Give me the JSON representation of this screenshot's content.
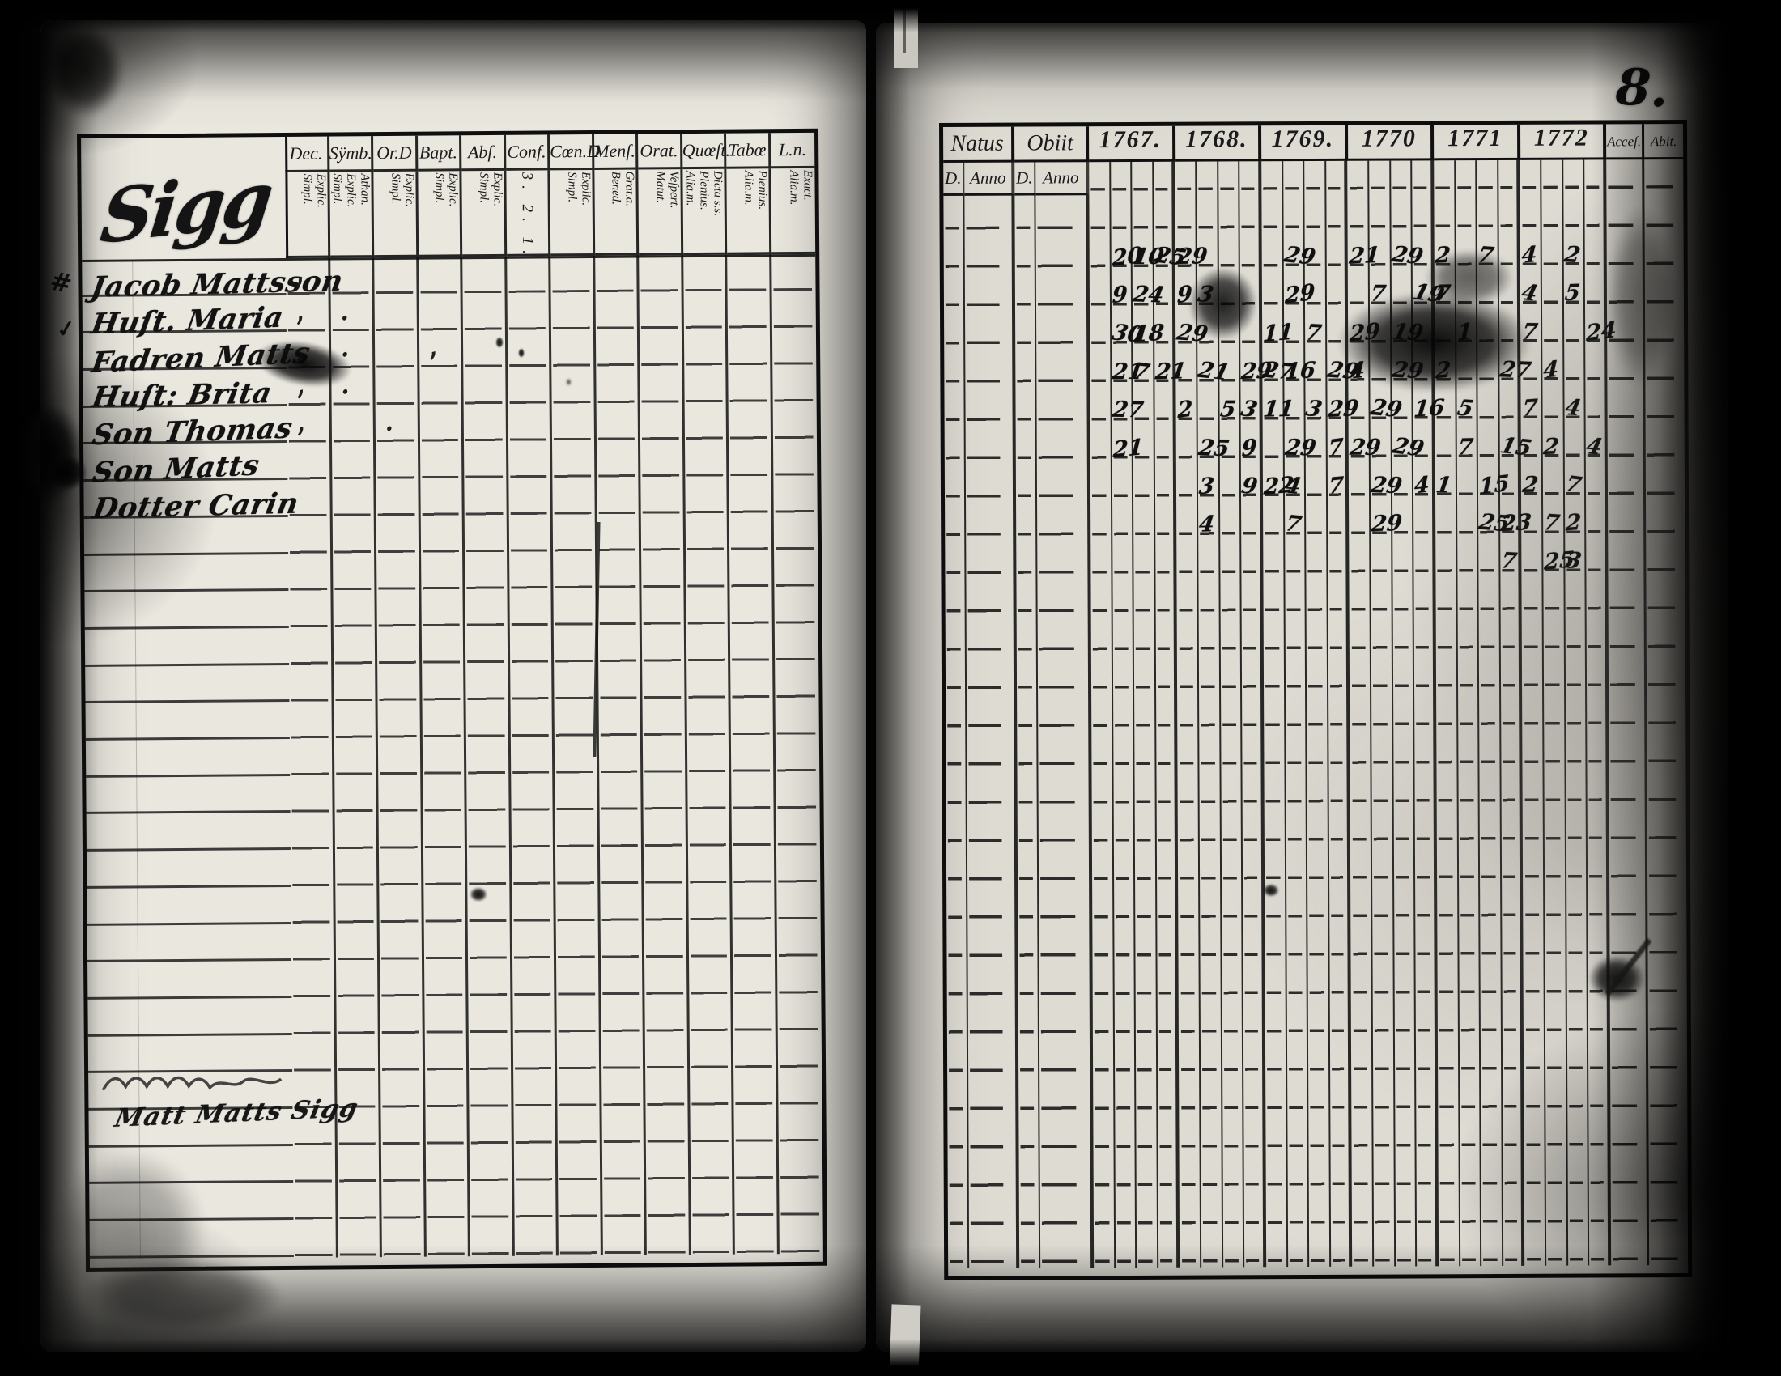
{
  "page": {
    "number": "8."
  },
  "left_table": {
    "heading_script": "Sigg",
    "names": [
      "Jacob Mattsson",
      "Huſt. Maria",
      "Fadren Matts",
      "Huſt: Brita",
      "Son Thomas",
      "Son Matts",
      "Dotter Carin"
    ],
    "margin_marks": [
      "#",
      "✓"
    ],
    "note": "Matt Matts Sigg",
    "row_count": 27,
    "columns": [
      {
        "label": "Dec.",
        "sub": [
          "Explic.",
          "Simpl."
        ]
      },
      {
        "label": "Sÿmb.",
        "sub": [
          "Athan.",
          "Explic.",
          "Simpl."
        ]
      },
      {
        "label": "Or.D",
        "sub": [
          "Explic.",
          "Simpl."
        ]
      },
      {
        "label": "Bapt.",
        "sub": [
          "Explic.",
          "Simpl."
        ]
      },
      {
        "label": "Abſ.",
        "sub": [
          "Explic.",
          "Simpl."
        ]
      },
      {
        "label": "Conf.",
        "sub": [
          "3.",
          "2.",
          "1."
        ],
        "horizontal": true
      },
      {
        "label": "Cœn.D",
        "sub": [
          "Explic.",
          "Simpl."
        ]
      },
      {
        "label": "Menſ.",
        "sub": [
          "Grat.a.",
          "Bened."
        ]
      },
      {
        "label": "Orat.",
        "sub": [
          "Veſpert.",
          "Matut."
        ]
      },
      {
        "label": "Quœſt.",
        "sub": [
          "Dicta s.s.",
          "Plenius.",
          "Alia.m."
        ]
      },
      {
        "label": "Tabœ",
        "sub": [
          "Plenius.",
          "Alia.m."
        ]
      },
      {
        "label": "L.n.",
        "sub": [
          "Exact.",
          "Alia.m."
        ]
      }
    ],
    "cell_marks": [
      {
        "r": 0,
        "c": 0,
        "t": ","
      },
      {
        "r": 1,
        "c": 0,
        "t": ","
      },
      {
        "r": 2,
        "c": 0,
        "t": ","
      },
      {
        "r": 3,
        "c": 0,
        "t": ","
      },
      {
        "r": 4,
        "c": 0,
        "t": ","
      },
      {
        "r": 1,
        "c": 1,
        "t": "."
      },
      {
        "r": 2,
        "c": 1,
        "t": "."
      },
      {
        "r": 3,
        "c": 1,
        "t": "."
      },
      {
        "r": 4,
        "c": 2,
        "t": "."
      },
      {
        "r": 2,
        "c": 3,
        "t": ","
      }
    ]
  },
  "right_table": {
    "natus": {
      "label": "Natus",
      "sub": [
        "D.",
        "Anno"
      ]
    },
    "obiit": {
      "label": "Obiit",
      "sub": [
        "D.",
        "Anno"
      ]
    },
    "years": [
      "1767.",
      "1768.",
      "1769.",
      "1770",
      "1771",
      "1772"
    ],
    "trailing": [
      "Acceſ.",
      "Abit."
    ],
    "row_count": 28,
    "marks": [
      {
        "r": 0,
        "y": 0,
        "s": 1,
        "t": "20"
      },
      {
        "r": 0,
        "y": 0,
        "s": 2,
        "t": "10"
      },
      {
        "r": 0,
        "y": 0,
        "s": 3,
        "t": "25"
      },
      {
        "r": 0,
        "y": 1,
        "s": 0,
        "t": "29"
      },
      {
        "r": 0,
        "y": 2,
        "s": 1,
        "t": "29"
      },
      {
        "r": 0,
        "y": 3,
        "s": 0,
        "t": "21"
      },
      {
        "r": 0,
        "y": 3,
        "s": 2,
        "t": "29"
      },
      {
        "r": 0,
        "y": 4,
        "s": 0,
        "t": "2"
      },
      {
        "r": 0,
        "y": 4,
        "s": 2,
        "t": "7"
      },
      {
        "r": 0,
        "y": 5,
        "s": 0,
        "t": "4"
      },
      {
        "r": 0,
        "y": 5,
        "s": 2,
        "t": "2"
      },
      {
        "r": 1,
        "y": 0,
        "s": 1,
        "t": "9"
      },
      {
        "r": 1,
        "y": 0,
        "s": 2,
        "t": "24"
      },
      {
        "r": 1,
        "y": 1,
        "s": 0,
        "t": "9"
      },
      {
        "r": 1,
        "y": 1,
        "s": 1,
        "t": "3"
      },
      {
        "r": 1,
        "y": 2,
        "s": 1,
        "t": "29"
      },
      {
        "r": 1,
        "y": 3,
        "s": 1,
        "t": "7"
      },
      {
        "r": 1,
        "y": 3,
        "s": 3,
        "t": "19"
      },
      {
        "r": 1,
        "y": 4,
        "s": 0,
        "t": "7"
      },
      {
        "r": 1,
        "y": 5,
        "s": 0,
        "t": "4"
      },
      {
        "r": 1,
        "y": 5,
        "s": 2,
        "t": "5"
      },
      {
        "r": 2,
        "y": 0,
        "s": 1,
        "t": "30"
      },
      {
        "r": 2,
        "y": 0,
        "s": 2,
        "t": "18"
      },
      {
        "r": 2,
        "y": 1,
        "s": 0,
        "t": "29"
      },
      {
        "r": 2,
        "y": 2,
        "s": 0,
        "t": "11"
      },
      {
        "r": 2,
        "y": 2,
        "s": 2,
        "t": "7"
      },
      {
        "r": 2,
        "y": 3,
        "s": 0,
        "t": "29"
      },
      {
        "r": 2,
        "y": 3,
        "s": 2,
        "t": "19"
      },
      {
        "r": 2,
        "y": 4,
        "s": 1,
        "t": "1"
      },
      {
        "r": 2,
        "y": 5,
        "s": 0,
        "t": "7"
      },
      {
        "r": 2,
        "y": 5,
        "s": 3,
        "t": "24"
      },
      {
        "r": 3,
        "y": 0,
        "s": 1,
        "t": "21"
      },
      {
        "r": 3,
        "y": 0,
        "s": 2,
        "t": "7"
      },
      {
        "r": 3,
        "y": 0,
        "s": 3,
        "t": "21"
      },
      {
        "r": 3,
        "y": 1,
        "s": 1,
        "t": "21"
      },
      {
        "r": 3,
        "y": 1,
        "s": 3,
        "t": "29"
      },
      {
        "r": 3,
        "y": 2,
        "s": 0,
        "t": "27"
      },
      {
        "r": 3,
        "y": 2,
        "s": 1,
        "t": "16"
      },
      {
        "r": 3,
        "y": 2,
        "s": 3,
        "t": "29"
      },
      {
        "r": 3,
        "y": 3,
        "s": 0,
        "t": "4"
      },
      {
        "r": 3,
        "y": 3,
        "s": 2,
        "t": "29"
      },
      {
        "r": 3,
        "y": 4,
        "s": 0,
        "t": "2"
      },
      {
        "r": 3,
        "y": 4,
        "s": 3,
        "t": "27"
      },
      {
        "r": 3,
        "y": 5,
        "s": 1,
        "t": "4"
      },
      {
        "r": 4,
        "y": 0,
        "s": 1,
        "t": "27"
      },
      {
        "r": 4,
        "y": 1,
        "s": 0,
        "t": "2"
      },
      {
        "r": 4,
        "y": 1,
        "s": 2,
        "t": "5"
      },
      {
        "r": 4,
        "y": 1,
        "s": 3,
        "t": "3"
      },
      {
        "r": 4,
        "y": 2,
        "s": 0,
        "t": "11"
      },
      {
        "r": 4,
        "y": 2,
        "s": 2,
        "t": "3"
      },
      {
        "r": 4,
        "y": 2,
        "s": 3,
        "t": "29"
      },
      {
        "r": 4,
        "y": 3,
        "s": 1,
        "t": "29"
      },
      {
        "r": 4,
        "y": 3,
        "s": 3,
        "t": "16"
      },
      {
        "r": 4,
        "y": 4,
        "s": 1,
        "t": "5"
      },
      {
        "r": 4,
        "y": 5,
        "s": 0,
        "t": "7"
      },
      {
        "r": 4,
        "y": 5,
        "s": 2,
        "t": "4"
      },
      {
        "r": 5,
        "y": 0,
        "s": 1,
        "t": "21"
      },
      {
        "r": 5,
        "y": 1,
        "s": 1,
        "t": "25"
      },
      {
        "r": 5,
        "y": 1,
        "s": 3,
        "t": "9"
      },
      {
        "r": 5,
        "y": 2,
        "s": 1,
        "t": "29"
      },
      {
        "r": 5,
        "y": 2,
        "s": 3,
        "t": "7"
      },
      {
        "r": 5,
        "y": 3,
        "s": 0,
        "t": "29"
      },
      {
        "r": 5,
        "y": 3,
        "s": 2,
        "t": "29"
      },
      {
        "r": 5,
        "y": 4,
        "s": 1,
        "t": "7"
      },
      {
        "r": 5,
        "y": 4,
        "s": 3,
        "t": "15"
      },
      {
        "r": 5,
        "y": 5,
        "s": 1,
        "t": "2"
      },
      {
        "r": 5,
        "y": 5,
        "s": 3,
        "t": "4"
      },
      {
        "r": 6,
        "y": 1,
        "s": 1,
        "t": "3"
      },
      {
        "r": 6,
        "y": 1,
        "s": 3,
        "t": "9"
      },
      {
        "r": 6,
        "y": 2,
        "s": 0,
        "t": "22"
      },
      {
        "r": 6,
        "y": 2,
        "s": 1,
        "t": "4"
      },
      {
        "r": 6,
        "y": 2,
        "s": 3,
        "t": "7"
      },
      {
        "r": 6,
        "y": 3,
        "s": 1,
        "t": "29"
      },
      {
        "r": 6,
        "y": 3,
        "s": 3,
        "t": "4"
      },
      {
        "r": 6,
        "y": 4,
        "s": 0,
        "t": "1"
      },
      {
        "r": 6,
        "y": 4,
        "s": 2,
        "t": "15"
      },
      {
        "r": 6,
        "y": 5,
        "s": 0,
        "t": "2"
      },
      {
        "r": 6,
        "y": 5,
        "s": 2,
        "t": "7"
      },
      {
        "r": 7,
        "y": 1,
        "s": 1,
        "t": "4"
      },
      {
        "r": 7,
        "y": 2,
        "s": 1,
        "t": "7"
      },
      {
        "r": 7,
        "y": 3,
        "s": 1,
        "t": "29"
      },
      {
        "r": 7,
        "y": 4,
        "s": 2,
        "t": "25"
      },
      {
        "r": 7,
        "y": 4,
        "s": 3,
        "t": "23"
      },
      {
        "r": 7,
        "y": 5,
        "s": 1,
        "t": "7"
      },
      {
        "r": 7,
        "y": 5,
        "s": 2,
        "t": "2"
      },
      {
        "r": 8,
        "y": 4,
        "s": 3,
        "t": "7"
      },
      {
        "r": 8,
        "y": 5,
        "s": 1,
        "t": "25"
      },
      {
        "r": 8,
        "y": 5,
        "s": 2,
        "t": "3"
      }
    ]
  }
}
